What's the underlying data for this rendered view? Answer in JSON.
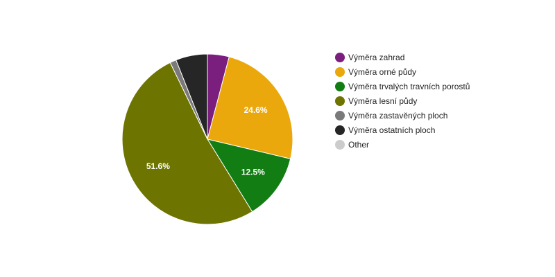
{
  "chart_data": {
    "type": "pie",
    "title": "",
    "series": [
      {
        "name": "Výměra zahrad",
        "value": 4.1,
        "color": "#7b1f7f"
      },
      {
        "name": "Výměra orné půdy",
        "value": 24.6,
        "color": "#eaa80c"
      },
      {
        "name": "Výměra trvalých travních porostů",
        "value": 12.5,
        "color": "#117d12"
      },
      {
        "name": "Výměra lesní půdy",
        "value": 51.6,
        "color": "#6d7400"
      },
      {
        "name": "Výměra zastavěných ploch",
        "value": 1.2,
        "color": "#7a7a7a"
      },
      {
        "name": "Výměra ostatních ploch",
        "value": 6.0,
        "color": "#262626"
      },
      {
        "name": "Other",
        "value": 0,
        "color": "#cccccc"
      }
    ],
    "data_labels": [
      "",
      "24.6%",
      "12.5%",
      "51.6%",
      "",
      "",
      ""
    ],
    "legend_position": "right"
  }
}
